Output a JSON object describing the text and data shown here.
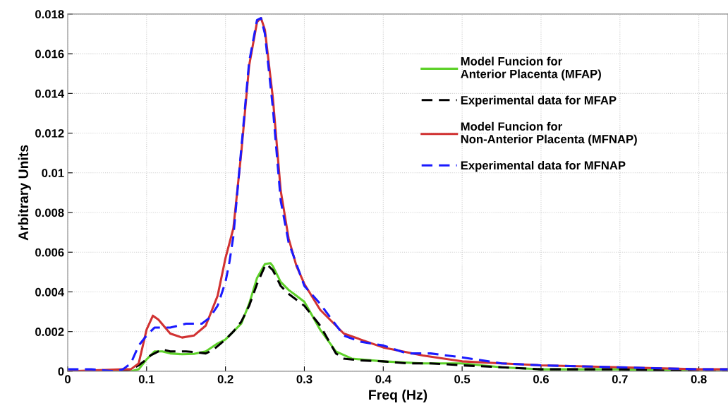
{
  "chart_data": {
    "type": "line",
    "xlabel": "Freq (Hz)",
    "ylabel": "Arbitrary Units",
    "xlim": [
      0,
      0.837
    ],
    "xticks": [
      0,
      0.1,
      0.2,
      0.3,
      0.4,
      0.5,
      0.6,
      0.7,
      0.8
    ],
    "ylim": [
      0,
      0.018
    ],
    "yticks": [
      0,
      0.002,
      0.004,
      0.006,
      0.008,
      0.01,
      0.012,
      0.014,
      0.016,
      0.018
    ],
    "grid": true,
    "legend": "top right",
    "series": [
      {
        "name": "Model Funcion for\nAnterior Placenta (MFAP)",
        "color": "#5ed12a",
        "line_style": "solid",
        "x": [
          0,
          0.07,
          0.08,
          0.09,
          0.1,
          0.11,
          0.12,
          0.13,
          0.145,
          0.16,
          0.175,
          0.19,
          0.2,
          0.21,
          0.22,
          0.23,
          0.24,
          0.25,
          0.257,
          0.26,
          0.27,
          0.28,
          0.29,
          0.3,
          0.32,
          0.34,
          0.36,
          0.4,
          0.45,
          0.5,
          0.55,
          0.6,
          0.7,
          0.8,
          0.837
        ],
        "values": [
          0,
          0,
          0,
          0.0001,
          0.0006,
          0.001,
          0.001,
          0.0009,
          0.00086,
          0.00088,
          0.001,
          0.0014,
          0.0016,
          0.002,
          0.0024,
          0.0034,
          0.0047,
          0.0054,
          0.00545,
          0.0053,
          0.0045,
          0.0041,
          0.0038,
          0.0035,
          0.0021,
          0.001,
          0.00064,
          0.0005,
          0.0004,
          0.0004,
          0.0002,
          0.0001,
          0.0001,
          0,
          0
        ]
      },
      {
        "name": "Experimental data for MFAP",
        "color": "#000000",
        "line_style": "dashed",
        "x": [
          0,
          0.07,
          0.08,
          0.09,
          0.1,
          0.105,
          0.11,
          0.12,
          0.13,
          0.15,
          0.16,
          0.175,
          0.185,
          0.2,
          0.21,
          0.22,
          0.23,
          0.24,
          0.25,
          0.252,
          0.26,
          0.27,
          0.28,
          0.3,
          0.32,
          0.34,
          0.35,
          0.37,
          0.4,
          0.43,
          0.46,
          0.5,
          0.55,
          0.6,
          0.7,
          0.8,
          0.837
        ],
        "values": [
          0,
          0,
          0.0001,
          0.0003,
          0.0006,
          0.0008,
          0.0009,
          0.0011,
          0.001,
          0.001,
          0.00097,
          0.0009,
          0.0011,
          0.0016,
          0.002,
          0.0025,
          0.0033,
          0.0044,
          0.0053,
          0.0054,
          0.0051,
          0.0043,
          0.0039,
          0.0033,
          0.0023,
          0.0009,
          0.00064,
          0.00055,
          0.0005,
          0.0004,
          0.0004,
          0.0003,
          0.0002,
          0.0001,
          0.0001,
          0,
          0
        ]
      },
      {
        "name": "Model Funcion for\nNon-Anterior Placenta (MFNAP)",
        "color": "#d13232",
        "line_style": "solid",
        "x": [
          0,
          0.07,
          0.08,
          0.09,
          0.1,
          0.108,
          0.115,
          0.13,
          0.145,
          0.16,
          0.175,
          0.19,
          0.2,
          0.21,
          0.22,
          0.23,
          0.24,
          0.245,
          0.25,
          0.26,
          0.27,
          0.28,
          0.29,
          0.3,
          0.32,
          0.35,
          0.4,
          0.45,
          0.5,
          0.55,
          0.6,
          0.7,
          0.8,
          0.837
        ],
        "values": [
          0,
          0.0001,
          0.0001,
          0.0004,
          0.0021,
          0.0028,
          0.0026,
          0.0019,
          0.0017,
          0.0018,
          0.0023,
          0.0038,
          0.0057,
          0.0072,
          0.011,
          0.0154,
          0.0176,
          0.0178,
          0.0172,
          0.0138,
          0.0091,
          0.0067,
          0.0053,
          0.0044,
          0.0031,
          0.0019,
          0.0012,
          0.0008,
          0.0005,
          0.0004,
          0.0003,
          0.0002,
          0.0001,
          0.0001
        ]
      },
      {
        "name": "Experimental data for MFNAP",
        "color": "#1a1aff",
        "line_style": "dashed",
        "x": [
          0,
          0.03,
          0.06,
          0.07,
          0.08,
          0.09,
          0.1,
          0.11,
          0.13,
          0.15,
          0.17,
          0.18,
          0.19,
          0.2,
          0.205,
          0.21,
          0.22,
          0.23,
          0.24,
          0.245,
          0.25,
          0.26,
          0.27,
          0.28,
          0.29,
          0.3,
          0.32,
          0.35,
          0.37,
          0.4,
          0.43,
          0.46,
          0.5,
          0.55,
          0.6,
          0.7,
          0.8,
          0.837
        ],
        "values": [
          0.0001,
          0.0001,
          0,
          0.0001,
          0.0004,
          0.0013,
          0.0018,
          0.0022,
          0.0022,
          0.0024,
          0.0024,
          0.0027,
          0.0033,
          0.0045,
          0.0055,
          0.0068,
          0.0112,
          0.0156,
          0.0177,
          0.0178,
          0.017,
          0.0133,
          0.0086,
          0.0065,
          0.0054,
          0.0043,
          0.0034,
          0.0018,
          0.0015,
          0.0013,
          0.0009,
          0.0009,
          0.0007,
          0.0004,
          0.0003,
          0.0002,
          0.0001,
          0.0001
        ]
      }
    ]
  }
}
